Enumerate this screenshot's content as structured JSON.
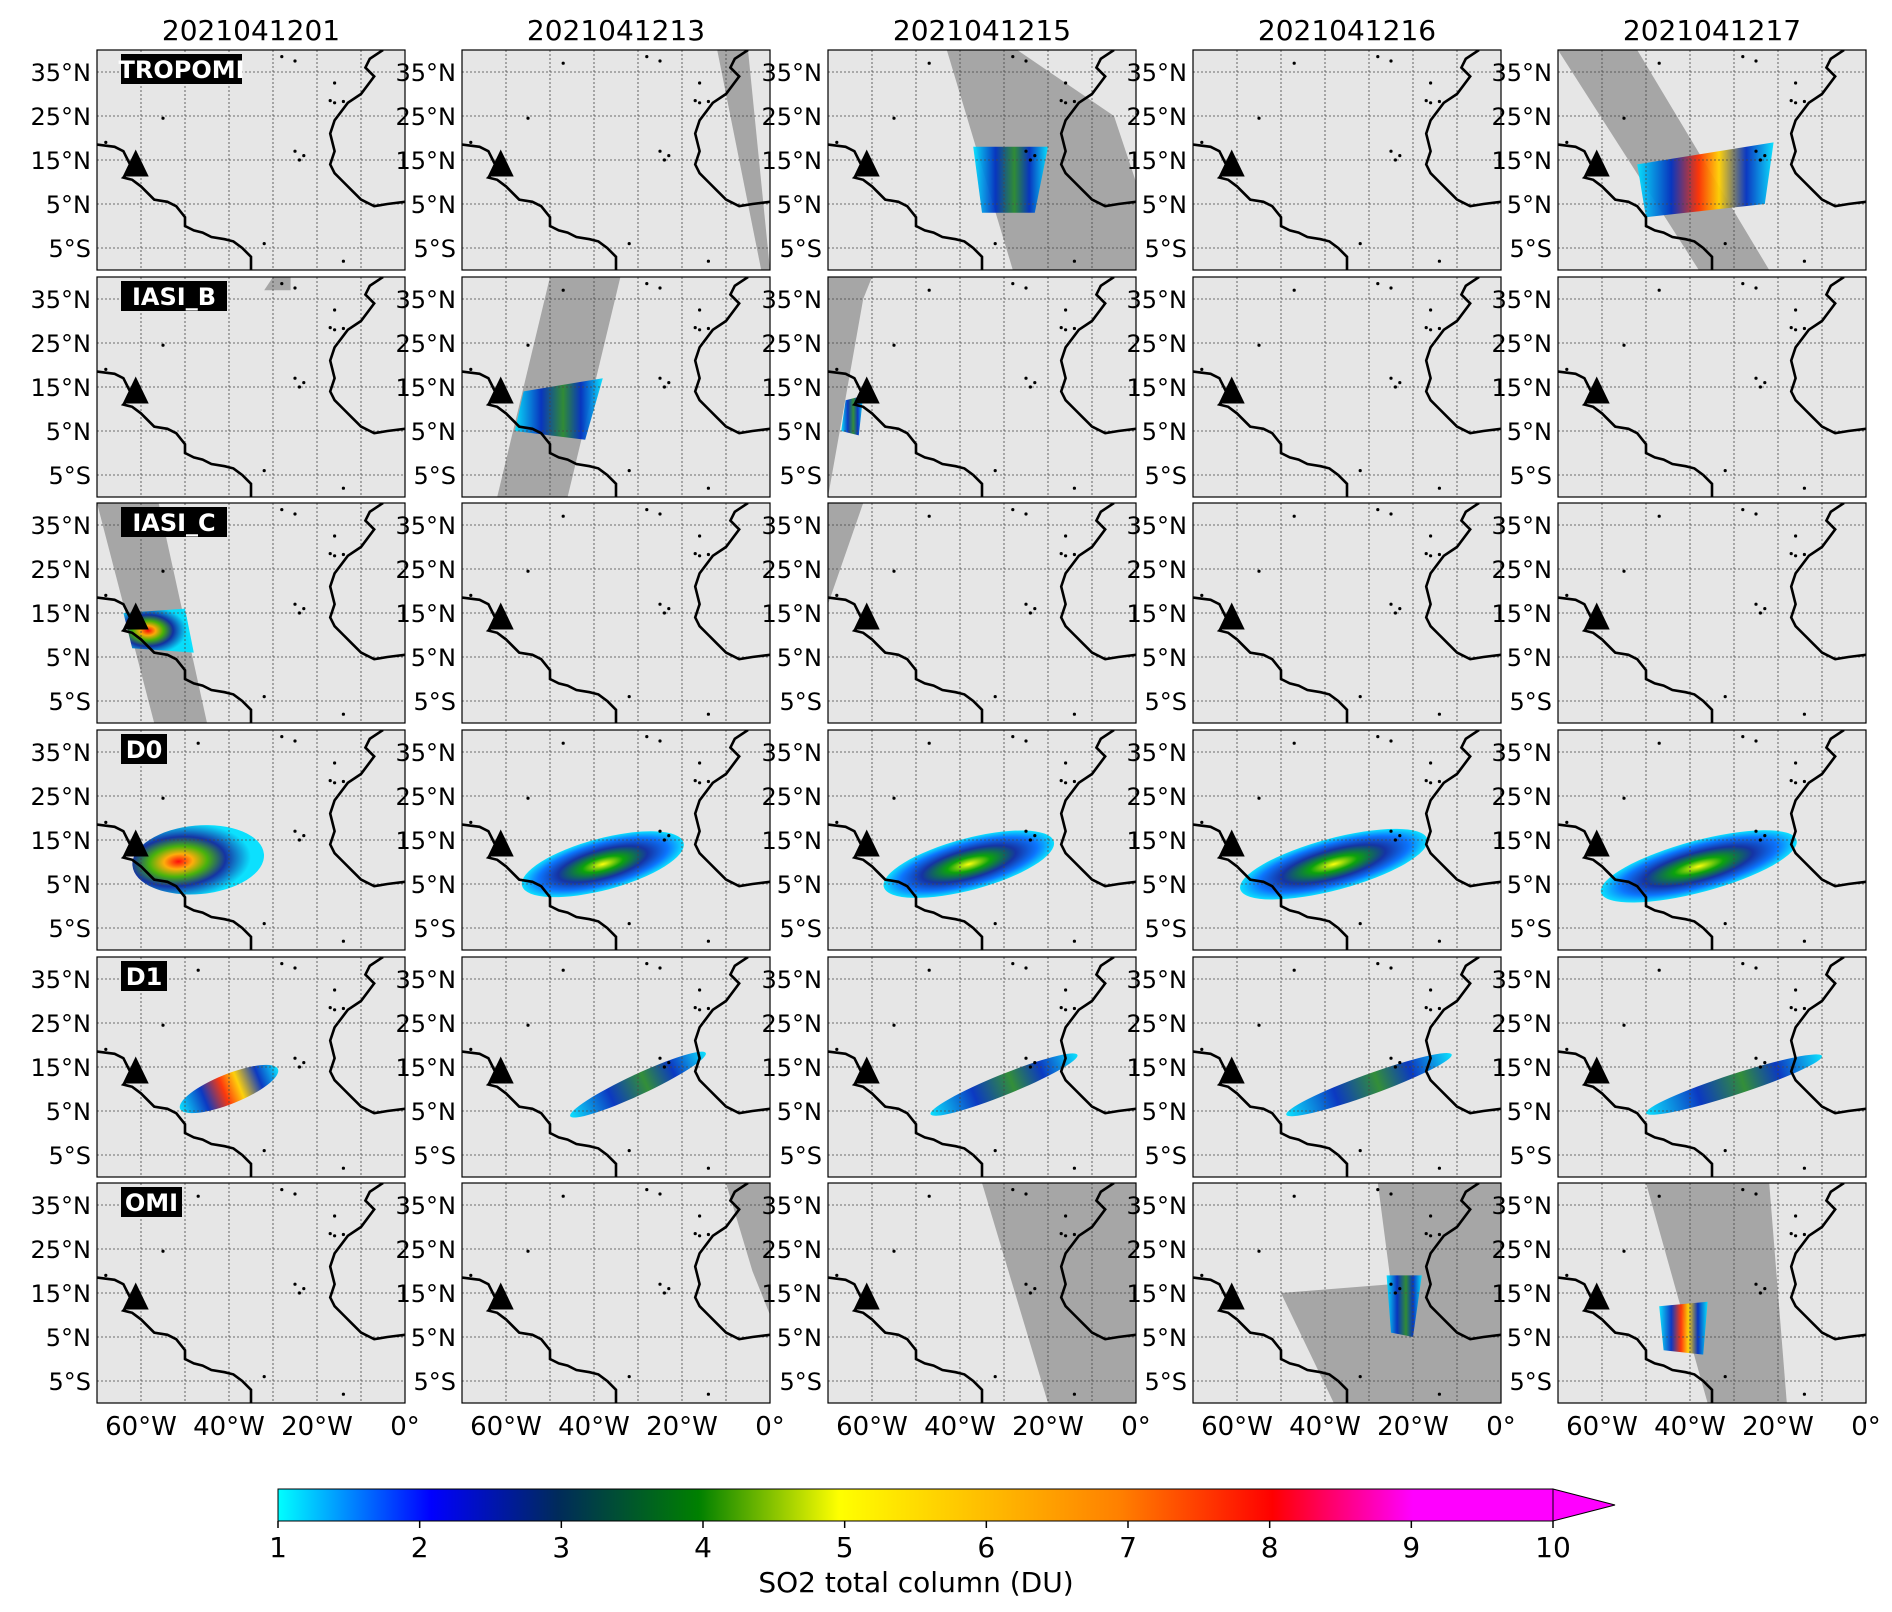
{
  "columns": [
    "2021041201",
    "2021041213",
    "2021041215",
    "2021041216",
    "2021041217"
  ],
  "rows": [
    "TROPOMI",
    "IASI_B",
    "IASI_C",
    "D0",
    "D1",
    "OMI"
  ],
  "lat_ticks": [
    "35°N",
    "25°N",
    "15°N",
    "5°N",
    "5°S"
  ],
  "lon_ticks": [
    "60°W",
    "40°W",
    "20°W",
    "0°"
  ],
  "colorbar": {
    "label": "SO2 total column (DU)",
    "ticks": [
      "1",
      "2",
      "3",
      "4",
      "5",
      "6",
      "7",
      "8",
      "9",
      "10"
    ],
    "extend": "max",
    "colors": [
      "#00ffff",
      "#0000ff",
      "#003366",
      "#008000",
      "#ffff00",
      "#ff8000",
      "#ff0000",
      "#ff00ff"
    ]
  },
  "map": {
    "ocean_color": "#e6e6e6",
    "swath_color": "#a6a6a6",
    "volcano_marker": "triangle",
    "lon_range": [
      -70,
      0
    ],
    "lat_range": [
      -10,
      40
    ]
  }
}
